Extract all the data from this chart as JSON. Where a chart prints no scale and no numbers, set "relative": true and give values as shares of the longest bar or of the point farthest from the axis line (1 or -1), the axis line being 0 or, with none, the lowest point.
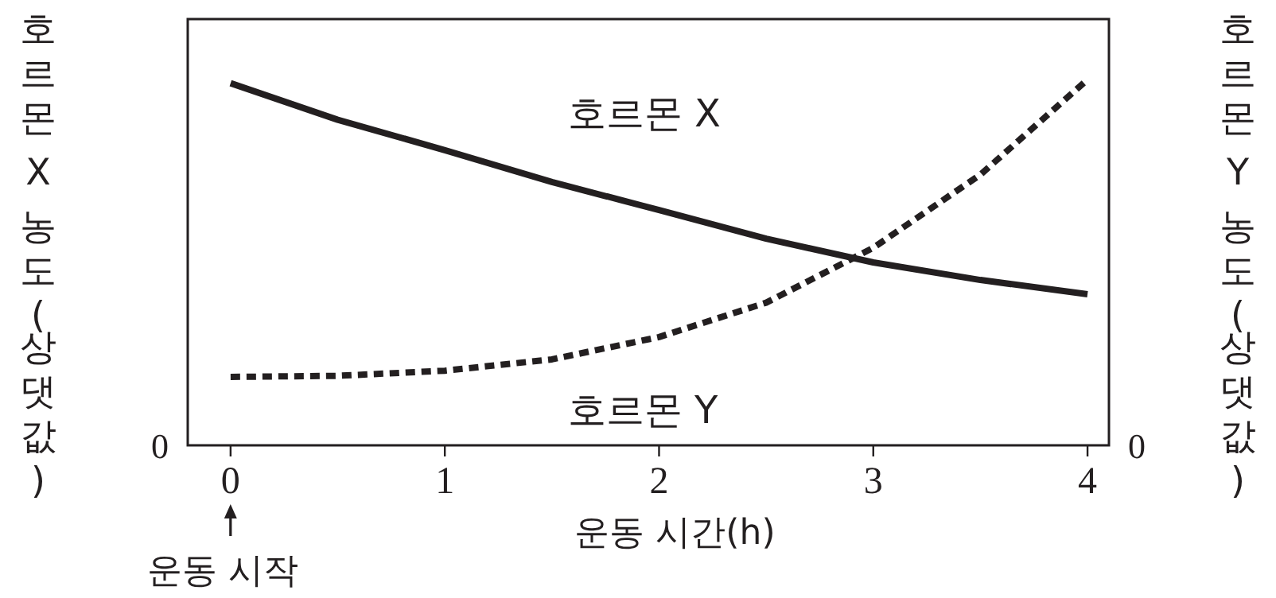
{
  "chart_data": {
    "type": "line",
    "relative": true,
    "xlabel": "운동 시간(h)",
    "ylabel": "호르몬 X 농도(상댓값)",
    "y2label": "호르몬 Y 농도(상댓값)",
    "xlim": [
      -0.2,
      4.1
    ],
    "xticks": [
      0,
      1,
      2,
      3,
      4
    ],
    "legend": false,
    "grid": false,
    "marker": "none",
    "series": [
      {
        "name": "호르몬 X",
        "color": "#231f20",
        "line_style": "solid",
        "x": [
          0,
          0.5,
          1,
          1.5,
          2,
          2.5,
          3,
          3.5,
          4
        ],
        "values": [
          0.99,
          0.89,
          0.807,
          0.72,
          0.643,
          0.565,
          0.5,
          0.452,
          0.413
        ]
      },
      {
        "name": "호르몬 Y",
        "color": "#231f20",
        "line_style": "dashed",
        "x": [
          0,
          0.5,
          1,
          1.5,
          2,
          2.5,
          3,
          3.5,
          4
        ],
        "values": [
          0.187,
          0.19,
          0.204,
          0.235,
          0.296,
          0.39,
          0.54,
          0.74,
          1.0
        ]
      }
    ],
    "annotations": [
      "운동 시작",
      "0",
      "0"
    ]
  }
}
